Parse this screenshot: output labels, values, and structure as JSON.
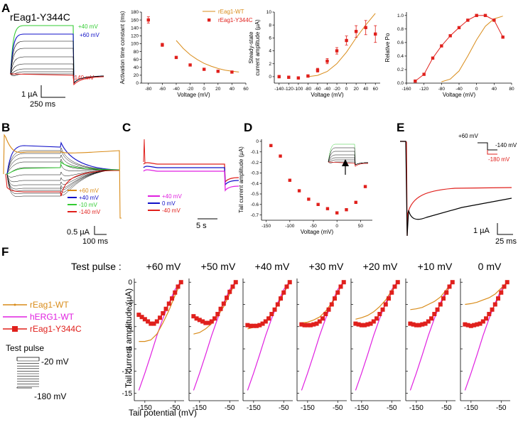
{
  "panel_labels": {
    "A": "A",
    "B": "B",
    "C": "C",
    "D": "D",
    "E": "E",
    "F": "F"
  },
  "colors": {
    "wt": "#d98c1a",
    "y344c": "#e0201c",
    "herg": "#e020e0",
    "green": "#33cc33",
    "blue": "#1010c8",
    "black": "#000000"
  },
  "panelA": {
    "title": "rEag1-Y344C",
    "trace_labels": {
      "p40": "+40 mV",
      "p60": "+60 mV",
      "m140": "-140 mV"
    },
    "scale_y": "1 µA",
    "scale_x": "250 ms"
  },
  "panelB": {
    "legend": [
      "+60 mV",
      "+40 mV",
      "-10 mV",
      "-140 mV"
    ],
    "scale_y": "0.5 µA",
    "scale_x": "100 ms"
  },
  "panelC": {
    "legend": [
      "+40 mV",
      "0 mV",
      "-40 mV"
    ],
    "scale_x": "5 s"
  },
  "panelE": {
    "protocol": {
      "v1": "+60 mV",
      "v2": "-140 mV",
      "v3": "-180 mV"
    },
    "scale_y": "1 µA",
    "scale_x": "25 ms"
  },
  "panelF": {
    "header_label": "Test pulse :",
    "test_pulses": [
      "+60 mV",
      "+50 mV",
      "+40 mV",
      "+30 mV",
      "+20 mV",
      "+10 mV",
      "0 mV"
    ],
    "legend": [
      "rEag1-WT",
      "hERG1-WT",
      "rEag1-Y344C"
    ],
    "protocol": {
      "title": "Test pulse",
      "top": "-20 mV",
      "bottom": "-180 mV"
    },
    "ylabel": "Tail current amplitude (µA)",
    "xlabel": "Tail potential (mV)",
    "yticks": [
      "0",
      "-3",
      "-6",
      "-9",
      "-12",
      "-15"
    ],
    "xticks": [
      "-150",
      "-50"
    ]
  },
  "chart_data": [
    {
      "type": "scatter",
      "panel": "A2",
      "title": "",
      "xlabel": "Voltage (mV)",
      "ylabel": "Activation time constant (ms)",
      "xlim": [
        -90,
        60
      ],
      "ylim": [
        0,
        180
      ],
      "xticks": [
        "-80",
        "-60",
        "-40",
        "-20",
        "0",
        "20",
        "40",
        "60"
      ],
      "yticks": [
        "0",
        "20",
        "40",
        "60",
        "80",
        "100",
        "120",
        "140",
        "160",
        "180"
      ],
      "legend": [
        "rEag1-WT",
        "rEag1-Y344C"
      ],
      "series": [
        {
          "name": "rEag1-WT",
          "kind": "line",
          "x": [
            -40,
            -30,
            -20,
            -10,
            0,
            10,
            20,
            30,
            40,
            50
          ],
          "y": [
            108,
            88,
            72,
            60,
            50,
            43,
            37,
            33,
            30,
            28
          ]
        },
        {
          "name": "rEag1-Y344C",
          "kind": "points",
          "x": [
            -80,
            -60,
            -40,
            -20,
            0,
            20,
            40
          ],
          "y": [
            160,
            97,
            65,
            46,
            35,
            30,
            28
          ],
          "err": [
            8,
            4,
            3,
            2,
            2,
            2,
            2
          ]
        }
      ]
    },
    {
      "type": "scatter",
      "panel": "A3",
      "xlabel": "Voltage (mV)",
      "ylabel": "Steady-state current amplitude (µA)",
      "xlim": [
        -150,
        70
      ],
      "ylim": [
        -1,
        10
      ],
      "xticks": [
        "-140",
        "-120",
        "-100",
        "-80",
        "-60",
        "-40",
        "-20",
        "0",
        "20",
        "40",
        "60"
      ],
      "yticks": [
        "0",
        "2",
        "4",
        "6",
        "8",
        "10"
      ],
      "series": [
        {
          "name": "rEag1-WT",
          "kind": "line",
          "x": [
            -80,
            -60,
            -40,
            -20,
            0,
            20,
            40,
            60
          ],
          "y": [
            0,
            0.2,
            0.8,
            2,
            3.8,
            6,
            8,
            9.8
          ]
        },
        {
          "name": "rEag1-Y344C",
          "kind": "points",
          "x": [
            -140,
            -120,
            -100,
            -80,
            -60,
            -40,
            -20,
            0,
            20,
            40,
            60
          ],
          "y": [
            0,
            -0.1,
            -0.2,
            0.1,
            1,
            2.4,
            4,
            5.6,
            7,
            7.6,
            6.6
          ],
          "err": [
            0.2,
            0.2,
            0.2,
            0.2,
            0.3,
            0.4,
            0.5,
            0.7,
            0.9,
            1.1,
            1.3
          ]
        }
      ]
    },
    {
      "type": "scatter",
      "panel": "A4",
      "xlabel": "Voltage (mV)",
      "ylabel": "Relative Po",
      "xlim": [
        -160,
        80
      ],
      "ylim": [
        0,
        1.05
      ],
      "xticks": [
        "-160",
        "-120",
        "-80",
        "-40",
        "0",
        "40",
        "80"
      ],
      "yticks": [
        "0.0",
        "0.2",
        "0.4",
        "0.6",
        "0.8",
        "1.0"
      ],
      "series": [
        {
          "name": "rEag1-WT",
          "kind": "line",
          "x": [
            -80,
            -60,
            -40,
            -20,
            0,
            20,
            40,
            60
          ],
          "y": [
            0.02,
            0.06,
            0.18,
            0.4,
            0.64,
            0.84,
            0.95,
            0.99
          ]
        },
        {
          "name": "rEag1-Y344C",
          "kind": "points",
          "x": [
            -140,
            -120,
            -100,
            -80,
            -60,
            -40,
            -20,
            0,
            20,
            40,
            60
          ],
          "y": [
            0.03,
            0.13,
            0.37,
            0.55,
            0.7,
            0.82,
            0.93,
            1.0,
            1.0,
            0.93,
            0.68
          ]
        }
      ]
    },
    {
      "type": "scatter",
      "panel": "D",
      "xlabel": "Voltage (mV)",
      "ylabel": "Tail current amplitude (µA)",
      "xlim": [
        -160,
        75
      ],
      "ylim": [
        -0.75,
        0.02
      ],
      "xticks": [
        "-150",
        "-100",
        "-50",
        "0",
        "50"
      ],
      "yticks": [
        "0",
        "-0.1",
        "-0.2",
        "-0.3",
        "-0.4",
        "-0.5",
        "-0.6",
        "-0.7"
      ],
      "series": [
        {
          "name": "rEag1-Y344C",
          "kind": "points",
          "x": [
            -140,
            -120,
            -100,
            -80,
            -60,
            -40,
            -20,
            0,
            20,
            40,
            60
          ],
          "y": [
            -0.04,
            -0.14,
            -0.37,
            -0.47,
            -0.55,
            -0.6,
            -0.64,
            -0.68,
            -0.65,
            -0.58,
            -0.43
          ]
        }
      ]
    },
    {
      "type": "line",
      "panel": "F",
      "xlim": [
        -185,
        -20
      ],
      "ylim": [
        -16,
        0.5
      ],
      "series_by_pulse": [
        {
          "pulse": "+60 mV",
          "wt": {
            "x": [
              -170,
              -150,
              -130,
              -110,
              -90,
              -70,
              -50,
              -30
            ],
            "y": [
              -8,
              -8,
              -7.8,
              -7,
              -5.5,
              -3.8,
              -1.8,
              0
            ]
          },
          "y344c": {
            "x": [
              -170,
              -160,
              -150,
              -140,
              -130,
              -120,
              -110,
              -100,
              -90,
              -80,
              -70,
              -60,
              -50,
              -40,
              -30
            ],
            "y": [
              -4.4,
              -4.7,
              -5,
              -5.3,
              -5.6,
              -5.6,
              -5.3,
              -4.8,
              -4.2,
              -3.6,
              -2.9,
              -2.2,
              -1.4,
              -0.6,
              0
            ]
          }
        },
        {
          "pulse": "+50 mV",
          "wt": {
            "x": [
              -170,
              -150,
              -130,
              -110,
              -90,
              -70,
              -50,
              -30
            ],
            "y": [
              -7,
              -6.8,
              -6.3,
              -5.6,
              -4.6,
              -3.3,
              -1.6,
              0
            ]
          },
          "y344c": {
            "x": [
              -170,
              -160,
              -150,
              -140,
              -130,
              -120,
              -110,
              -100,
              -90,
              -80,
              -70,
              -60,
              -50,
              -40,
              -30
            ],
            "y": [
              -4.6,
              -4.9,
              -5.1,
              -5.3,
              -5.5,
              -5.5,
              -5.3,
              -4.9,
              -4.3,
              -3.6,
              -2.9,
              -2.1,
              -1.3,
              -0.6,
              0
            ]
          }
        },
        {
          "pulse": "+40 mV",
          "wt": {
            "x": [
              -170,
              -150,
              -130,
              -110,
              -90,
              -70,
              -50,
              -30
            ],
            "y": [
              -6.3,
              -6.1,
              -5.8,
              -5.2,
              -4.3,
              -3.1,
              -1.5,
              0
            ]
          },
          "y344c": {
            "x": [
              -170,
              -160,
              -150,
              -140,
              -130,
              -120,
              -110,
              -100,
              -90,
              -80,
              -70,
              -60,
              -50,
              -40,
              -30
            ],
            "y": [
              -5.8,
              -5.9,
              -5.9,
              -5.9,
              -5.8,
              -5.6,
              -5.3,
              -4.9,
              -4.3,
              -3.7,
              -3,
              -2.2,
              -1.4,
              -0.6,
              0
            ]
          }
        },
        {
          "pulse": "+30 mV",
          "wt": {
            "x": [
              -170,
              -150,
              -130,
              -110,
              -90,
              -70,
              -50,
              -30
            ],
            "y": [
              -5.5,
              -5.4,
              -5.1,
              -4.7,
              -3.9,
              -2.8,
              -1.3,
              0
            ]
          },
          "y344c": {
            "x": [
              -170,
              -160,
              -150,
              -140,
              -130,
              -120,
              -110,
              -100,
              -90,
              -80,
              -70,
              -60,
              -50,
              -40,
              -30
            ],
            "y": [
              -5.7,
              -5.8,
              -5.8,
              -5.8,
              -5.7,
              -5.6,
              -5.3,
              -4.9,
              -4.3,
              -3.7,
              -3,
              -2.2,
              -1.4,
              -0.6,
              0
            ]
          }
        },
        {
          "pulse": "+20 mV",
          "wt": {
            "x": [
              -170,
              -150,
              -130,
              -110,
              -90,
              -70,
              -50,
              -30
            ],
            "y": [
              -5,
              -4.8,
              -4.5,
              -4,
              -3.3,
              -2.4,
              -1.1,
              0
            ]
          },
          "y344c": {
            "x": [
              -170,
              -160,
              -150,
              -140,
              -130,
              -120,
              -110,
              -100,
              -90,
              -80,
              -70,
              -60,
              -50,
              -40,
              -30
            ],
            "y": [
              -5.6,
              -5.7,
              -5.8,
              -5.8,
              -5.7,
              -5.6,
              -5.3,
              -4.9,
              -4.3,
              -3.7,
              -3,
              -2.2,
              -1.4,
              -0.6,
              0
            ]
          }
        },
        {
          "pulse": "+10 mV",
          "wt": {
            "x": [
              -170,
              -150,
              -130,
              -110,
              -90,
              -70,
              -50,
              -30
            ],
            "y": [
              -3.7,
              -3.6,
              -3.4,
              -3,
              -2.6,
              -2,
              -1,
              0
            ]
          },
          "y344c": {
            "x": [
              -170,
              -160,
              -150,
              -140,
              -130,
              -120,
              -110,
              -100,
              -90,
              -80,
              -70,
              -60,
              -50,
              -40,
              -30
            ],
            "y": [
              -5.6,
              -5.7,
              -5.8,
              -5.8,
              -5.7,
              -5.6,
              -5.3,
              -4.9,
              -4.3,
              -3.7,
              -3,
              -2.2,
              -1.4,
              -0.6,
              0
            ]
          }
        },
        {
          "pulse": "0 mV",
          "wt": {
            "x": [
              -170,
              -150,
              -130,
              -110,
              -90,
              -70,
              -50,
              -30
            ],
            "y": [
              -3,
              -2.9,
              -2.7,
              -2.4,
              -2.1,
              -1.6,
              -0.8,
              0
            ]
          },
          "y344c": {
            "x": [
              -170,
              -160,
              -150,
              -140,
              -130,
              -120,
              -110,
              -100,
              -90,
              -80,
              -70,
              -60,
              -50,
              -40,
              -30
            ],
            "y": [
              -5.7,
              -5.8,
              -5.9,
              -5.8,
              -5.7,
              -5.6,
              -5.3,
              -4.9,
              -4.3,
              -3.7,
              -3,
              -2.2,
              -1.4,
              -0.6,
              0
            ]
          }
        }
      ],
      "herg": {
        "x": [
          -170,
          -150,
          -130,
          -110,
          -90,
          -70,
          -50,
          -40,
          -30
        ],
        "y": [
          -14.6,
          -12.3,
          -9.8,
          -7.2,
          -4.9,
          -2.8,
          -1,
          -0.4,
          0
        ]
      }
    }
  ]
}
